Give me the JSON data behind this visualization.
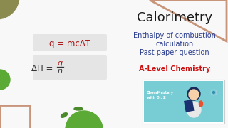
{
  "bg_color": "#f8f8f8",
  "title": "Calorimetry",
  "subtitle_lines": [
    "Enthalpy of combustion",
    "calculation",
    "Past paper question"
  ],
  "alevel_text": "A-Level Chemistry",
  "formula1": "q = mcΔT",
  "formula2_left": "ΔH = ",
  "formula2_frac_num": "q",
  "formula2_frac_den": "n",
  "title_color": "#1a1a1a",
  "subtitle_color": "#2a3d8f",
  "alevel_color": "#cc1111",
  "formula_color": "#aa1111",
  "formula_text_color": "#333333",
  "formula_bg": "#e5e5e5",
  "shape_olive": "#8b8b50",
  "shape_rose": "#c8957a",
  "shape_green_dark": "#4a8a2a",
  "shape_green_bright": "#5aaa35",
  "thumb_bg": "#78cdd4",
  "thumb_border": "#cccccc"
}
